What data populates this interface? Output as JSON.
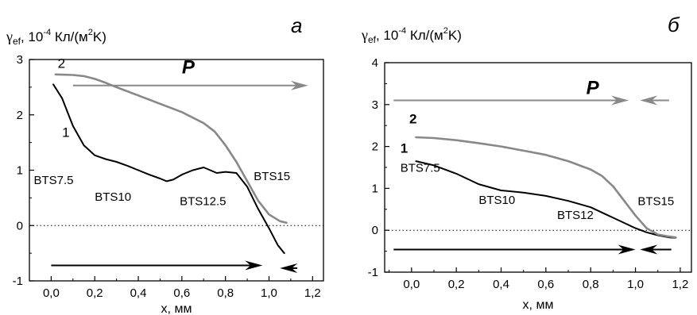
{
  "chart_data": [
    {
      "type": "line",
      "panel_label": "а",
      "ylabel_symbol": "γ",
      "ylabel_sub": "ef",
      "ylabel_units_a": ", 10",
      "ylabel_units_exp": "-4",
      "ylabel_units_b": " Кл/(м",
      "ylabel_units_exp2": "2",
      "ylabel_units_c": "K)",
      "xlabel": "x, мм",
      "xlim": [
        -0.1,
        1.25
      ],
      "ylim": [
        -1,
        3
      ],
      "xticks": [
        0.0,
        0.2,
        0.4,
        0.6,
        0.8,
        1.0,
        1.2
      ],
      "xtick_labels": [
        "0,0",
        "0,2",
        "0,4",
        "0,6",
        "0,8",
        "1,0",
        "1,2"
      ],
      "yticks": [
        -1,
        0,
        1,
        2,
        3
      ],
      "ytick_labels": [
        "-1",
        "0",
        "1",
        "2",
        "3"
      ],
      "zero_line": true,
      "series": [
        {
          "name": "1",
          "color": "#000000",
          "x": [
            0.01,
            0.05,
            0.1,
            0.15,
            0.2,
            0.25,
            0.3,
            0.35,
            0.4,
            0.45,
            0.5,
            0.53,
            0.56,
            0.6,
            0.65,
            0.7,
            0.73,
            0.76,
            0.8,
            0.85,
            0.9,
            0.95,
            1.0,
            1.04,
            1.07
          ],
          "y": [
            2.55,
            2.3,
            1.8,
            1.45,
            1.27,
            1.2,
            1.15,
            1.08,
            1.0,
            0.92,
            0.85,
            0.8,
            0.83,
            0.92,
            1.0,
            1.05,
            1.0,
            0.95,
            0.97,
            0.95,
            0.7,
            0.3,
            -0.05,
            -0.35,
            -0.5
          ]
        },
        {
          "name": "2",
          "color": "#888888",
          "x": [
            0.02,
            0.1,
            0.15,
            0.2,
            0.25,
            0.3,
            0.4,
            0.5,
            0.6,
            0.7,
            0.75,
            0.8,
            0.85,
            0.9,
            0.95,
            1.0,
            1.05,
            1.08
          ],
          "y": [
            2.73,
            2.72,
            2.7,
            2.65,
            2.58,
            2.5,
            2.35,
            2.2,
            2.05,
            1.85,
            1.7,
            1.45,
            1.15,
            0.8,
            0.45,
            0.2,
            0.08,
            0.05
          ]
        }
      ],
      "curve_labels": [
        {
          "text": "1",
          "x": 0.05,
          "y": 1.6,
          "bold": false
        },
        {
          "text": "2",
          "x": 0.03,
          "y": 2.85,
          "bold": false
        }
      ],
      "annotations": [
        {
          "text": "BTS7.5",
          "x": -0.08,
          "y": 0.75
        },
        {
          "text": "BTS10",
          "x": 0.2,
          "y": 0.45
        },
        {
          "text": "BTS12.5",
          "x": 0.59,
          "y": 0.37
        },
        {
          "text": "BTS15",
          "x": 0.93,
          "y": 0.82
        }
      ],
      "arrows": [
        {
          "color": "#888888",
          "x1": 0.1,
          "x2": 1.18,
          "y": 2.53
        },
        {
          "color": "#000000",
          "x1": 0.0,
          "x2": 0.97,
          "y": -0.72
        },
        {
          "color": "#000000",
          "x1": 1.13,
          "x2": 1.05,
          "y": -0.77
        }
      ],
      "p_label": {
        "text": "P",
        "x": 0.6,
        "y": 2.75
      }
    },
    {
      "type": "line",
      "panel_label": "б",
      "ylabel_symbol": "γ",
      "ylabel_sub": "ef",
      "ylabel_units_a": ", 10",
      "ylabel_units_exp": "-4",
      "ylabel_units_b": " Кл/(м",
      "ylabel_units_exp2": "2",
      "ylabel_units_c": "K)",
      "xlabel": "x, мм",
      "xlim": [
        -0.12,
        1.25
      ],
      "ylim": [
        -1,
        4
      ],
      "xticks": [
        0.0,
        0.2,
        0.4,
        0.6,
        0.8,
        1.0,
        1.2
      ],
      "xtick_labels": [
        "0,0",
        "0,2",
        "0,4",
        "0,6",
        "0,8",
        "1,0",
        "1,2"
      ],
      "yticks": [
        -1,
        0,
        1,
        2,
        3,
        4
      ],
      "ytick_labels": [
        "-1",
        "0",
        "1",
        "2",
        "3",
        "4"
      ],
      "zero_line": true,
      "series": [
        {
          "name": "1",
          "color": "#000000",
          "x": [
            0.02,
            0.1,
            0.2,
            0.3,
            0.4,
            0.5,
            0.6,
            0.7,
            0.8,
            0.9,
            1.0,
            1.05,
            1.1,
            1.15,
            1.18
          ],
          "y": [
            1.65,
            1.55,
            1.35,
            1.1,
            0.95,
            0.9,
            0.82,
            0.7,
            0.55,
            0.3,
            0.05,
            -0.05,
            -0.12,
            -0.17,
            -0.18
          ]
        },
        {
          "name": "2",
          "color": "#888888",
          "x": [
            0.02,
            0.1,
            0.2,
            0.3,
            0.4,
            0.5,
            0.6,
            0.7,
            0.8,
            0.85,
            0.9,
            0.95,
            1.0,
            1.05,
            1.1,
            1.15,
            1.18
          ],
          "y": [
            2.22,
            2.2,
            2.15,
            2.08,
            2.0,
            1.9,
            1.8,
            1.65,
            1.45,
            1.3,
            1.05,
            0.7,
            0.35,
            0.05,
            -0.1,
            -0.15,
            -0.17
          ]
        }
      ],
      "curve_labels": [
        {
          "text": "1",
          "x": -0.05,
          "y": 1.85,
          "bold": true
        },
        {
          "text": "2",
          "x": -0.01,
          "y": 2.55,
          "bold": true
        }
      ],
      "annotations": [
        {
          "text": "BTS7.5",
          "x": -0.05,
          "y": 1.4
        },
        {
          "text": "BTS10",
          "x": 0.3,
          "y": 0.63
        },
        {
          "text": "BTS12",
          "x": 0.65,
          "y": 0.27
        },
        {
          "text": "BTS15",
          "x": 1.01,
          "y": 0.6
        }
      ],
      "arrows": [
        {
          "color": "#888888",
          "x1": -0.08,
          "x2": 0.97,
          "y": 3.1
        },
        {
          "color": "#888888",
          "x1": 1.15,
          "x2": 1.02,
          "y": 3.1
        },
        {
          "color": "#000000",
          "x1": -0.08,
          "x2": 1.0,
          "y": -0.46
        },
        {
          "color": "#000000",
          "x1": 1.16,
          "x2": 1.02,
          "y": -0.46
        }
      ],
      "p_label": {
        "text": "P",
        "x": 0.78,
        "y": 3.25
      }
    }
  ]
}
